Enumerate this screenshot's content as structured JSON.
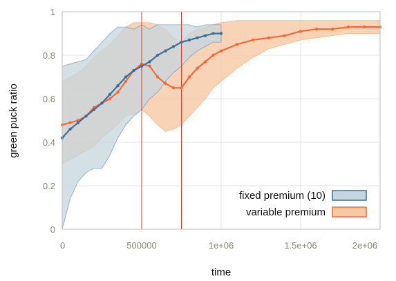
{
  "chart_data": {
    "type": "line",
    "xlabel": "time",
    "ylabel": "green puck ratio",
    "xlim": [
      0,
      2000000
    ],
    "ylim": [
      0,
      1
    ],
    "x_ticks": [
      {
        "value": 0,
        "label": "0"
      },
      {
        "value": 500000,
        "label": "500000"
      },
      {
        "value": 1000000,
        "label": "1e+06"
      },
      {
        "value": 1500000,
        "label": "1.5e+06"
      },
      {
        "value": 2000000,
        "label": "2e+06"
      }
    ],
    "y_ticks": [
      {
        "value": 0,
        "label": "0"
      },
      {
        "value": 0.2,
        "label": "0.2"
      },
      {
        "value": 0.4,
        "label": "0.4"
      },
      {
        "value": 0.6,
        "label": "0.6"
      },
      {
        "value": 0.8,
        "label": "0.8"
      },
      {
        "value": 1,
        "label": "1"
      }
    ],
    "grid": true,
    "legend_position": "bottom-right",
    "vertical_markers": [
      500000,
      750000
    ],
    "vertical_marker_color": "#e8392c",
    "series": [
      {
        "name": "fixed premium (10)",
        "line_color": "#3e6f96",
        "fill_color": "#c4d6de",
        "edge_color": "#5b8bb0",
        "x": [
          0,
          50000,
          100000,
          150000,
          200000,
          250000,
          300000,
          350000,
          400000,
          450000,
          500000,
          550000,
          600000,
          650000,
          700000,
          750000,
          800000,
          850000,
          900000,
          950000,
          1000000
        ],
        "y": [
          0.42,
          0.46,
          0.49,
          0.52,
          0.55,
          0.58,
          0.62,
          0.66,
          0.7,
          0.73,
          0.75,
          0.77,
          0.8,
          0.82,
          0.84,
          0.86,
          0.87,
          0.88,
          0.89,
          0.9,
          0.9
        ],
        "lower": [
          0.0,
          0.14,
          0.22,
          0.26,
          0.28,
          0.28,
          0.34,
          0.42,
          0.48,
          0.52,
          0.55,
          0.6,
          0.63,
          0.68,
          0.72,
          0.75,
          0.79,
          0.82,
          0.84,
          0.86,
          0.86
        ],
        "upper": [
          0.75,
          0.76,
          0.77,
          0.78,
          0.82,
          0.86,
          0.9,
          0.93,
          0.93,
          0.92,
          0.94,
          0.92,
          0.94,
          0.94,
          0.94,
          0.94,
          0.94,
          0.93,
          0.94,
          0.94,
          0.94
        ]
      },
      {
        "name": "variable premium",
        "line_color": "#f26a35",
        "fill_color": "#f8c8a4",
        "edge_color": "#f4a26c",
        "x": [
          0,
          50000,
          100000,
          150000,
          200000,
          250000,
          300000,
          350000,
          400000,
          450000,
          500000,
          550000,
          600000,
          650000,
          700000,
          750000,
          800000,
          850000,
          900000,
          950000,
          1000000,
          1100000,
          1200000,
          1300000,
          1400000,
          1500000,
          1600000,
          1700000,
          1800000,
          1900000,
          2000000
        ],
        "y": [
          0.48,
          0.49,
          0.5,
          0.52,
          0.56,
          0.58,
          0.6,
          0.63,
          0.68,
          0.73,
          0.76,
          0.75,
          0.7,
          0.67,
          0.65,
          0.65,
          0.7,
          0.74,
          0.77,
          0.8,
          0.82,
          0.85,
          0.87,
          0.88,
          0.89,
          0.91,
          0.92,
          0.92,
          0.93,
          0.93,
          0.93
        ],
        "lower": [
          0.3,
          0.32,
          0.34,
          0.36,
          0.38,
          0.42,
          0.45,
          0.48,
          0.52,
          0.53,
          0.55,
          0.52,
          0.48,
          0.45,
          0.46,
          0.48,
          0.52,
          0.56,
          0.6,
          0.65,
          0.68,
          0.74,
          0.79,
          0.83,
          0.85,
          0.87,
          0.88,
          0.89,
          0.9,
          0.9,
          0.9
        ],
        "upper": [
          0.68,
          0.7,
          0.72,
          0.75,
          0.79,
          0.82,
          0.85,
          0.89,
          0.93,
          0.95,
          0.95,
          0.95,
          0.94,
          0.92,
          0.88,
          0.86,
          0.9,
          0.92,
          0.93,
          0.94,
          0.95,
          0.96,
          0.96,
          0.96,
          0.96,
          0.96,
          0.96,
          0.96,
          0.96,
          0.96,
          0.96
        ]
      }
    ]
  }
}
